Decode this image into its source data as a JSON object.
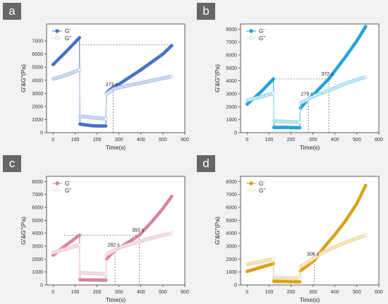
{
  "chart_data": [
    {
      "type": "scatter",
      "panel_label": "a",
      "color": "#4a72c4",
      "xlabel": "Time(s)",
      "ylabel": "G'&G''(Pa)",
      "xlim": [
        -30,
        600
      ],
      "ylim": [
        0,
        8300
      ],
      "xticks": [
        "0",
        "100",
        "200",
        "300",
        "400",
        "500",
        "600"
      ],
      "yticks": [
        "0",
        "1000",
        "2000",
        "3000",
        "4000",
        "5000",
        "6000",
        "7000"
      ],
      "legend_position": "top-left",
      "series": [
        {
          "name": "G'",
          "marker": "filled",
          "points": [
            [
              0,
              5200
            ],
            [
              60,
              6200
            ],
            [
              120,
              7250
            ],
            [
              122,
              650
            ],
            [
              180,
              520
            ],
            [
              240,
              500
            ],
            [
              243,
              3000
            ],
            [
              260,
              3300
            ],
            [
              273,
              3450
            ],
            [
              300,
              3700
            ],
            [
              400,
              4800
            ],
            [
              500,
              6000
            ],
            [
              540,
              6650
            ]
          ]
        },
        {
          "name": "G''",
          "marker": "open",
          "points": [
            [
              0,
              4100
            ],
            [
              60,
              4400
            ],
            [
              120,
              4800
            ],
            [
              122,
              1250
            ],
            [
              180,
              1150
            ],
            [
              240,
              1050
            ],
            [
              243,
              2950
            ],
            [
              260,
              3150
            ],
            [
              273,
              3300
            ],
            [
              300,
              3450
            ],
            [
              400,
              3800
            ],
            [
              500,
              4150
            ],
            [
              540,
              4300
            ]
          ]
        }
      ],
      "annotations": [
        {
          "text": "273 s",
          "x": 273,
          "y": 3300
        }
      ],
      "guides": [
        {
          "from": [
            120,
            6700
          ],
          "to": [
            540,
            6700
          ]
        },
        {
          "from": [
            273,
            0
          ],
          "to": [
            273,
            3300
          ]
        }
      ]
    },
    {
      "type": "scatter",
      "panel_label": "b",
      "color": "#21a4d8",
      "xlabel": "Time(s)",
      "ylabel": "G'&G''(Pa)",
      "xlim": [
        -30,
        600
      ],
      "ylim": [
        0,
        8400
      ],
      "xticks": [
        "0",
        "100",
        "200",
        "300",
        "400",
        "500",
        "600"
      ],
      "yticks": [
        "0",
        "1000",
        "2000",
        "3000",
        "4000",
        "5000",
        "6000",
        "7000",
        "8000"
      ],
      "legend_position": "top-left",
      "series": [
        {
          "name": "G'",
          "marker": "filled",
          "points": [
            [
              0,
              2200
            ],
            [
              60,
              3100
            ],
            [
              120,
              4150
            ],
            [
              122,
              400
            ],
            [
              180,
              400
            ],
            [
              240,
              380
            ],
            [
              243,
              1900
            ],
            [
              279,
              2600
            ],
            [
              300,
              2900
            ],
            [
              372,
              4150
            ],
            [
              450,
              5900
            ],
            [
              500,
              7100
            ],
            [
              540,
              8200
            ]
          ]
        },
        {
          "name": "G''",
          "marker": "open",
          "points": [
            [
              0,
              2500
            ],
            [
              60,
              2750
            ],
            [
              120,
              3050
            ],
            [
              122,
              900
            ],
            [
              180,
              850
            ],
            [
              240,
              800
            ],
            [
              243,
              2300
            ],
            [
              279,
              2600
            ],
            [
              300,
              2800
            ],
            [
              372,
              3250
            ],
            [
              450,
              3800
            ],
            [
              500,
              4100
            ],
            [
              540,
              4300
            ]
          ]
        }
      ],
      "annotations": [
        {
          "text": "279 s",
          "x": 279,
          "y": 2600
        },
        {
          "text": "372 s",
          "x": 372,
          "y": 4150
        }
      ],
      "guides": [
        {
          "from": [
            120,
            4150
          ],
          "to": [
            372,
            4150
          ]
        },
        {
          "from": [
            279,
            0
          ],
          "to": [
            279,
            2600
          ]
        },
        {
          "from": [
            372,
            0
          ],
          "to": [
            372,
            4150
          ]
        }
      ]
    },
    {
      "type": "scatter",
      "panel_label": "c",
      "color": "#d4879e",
      "xlabel": "Time(s)",
      "ylabel": "G'&G''(Pa)",
      "xlim": [
        -30,
        600
      ],
      "ylim": [
        0,
        8400
      ],
      "xticks": [
        "0",
        "100",
        "200",
        "300",
        "400",
        "500",
        "600"
      ],
      "yticks": [
        "0",
        "1000",
        "2000",
        "3000",
        "4000",
        "5000",
        "6000",
        "7000",
        "8000"
      ],
      "legend_position": "top-left",
      "series": [
        {
          "name": "G'",
          "marker": "filled",
          "points": [
            [
              0,
              2300
            ],
            [
              60,
              3100
            ],
            [
              120,
              3850
            ],
            [
              122,
              400
            ],
            [
              180,
              380
            ],
            [
              240,
              370
            ],
            [
              243,
              2000
            ],
            [
              282,
              2700
            ],
            [
              300,
              2850
            ],
            [
              393,
              3850
            ],
            [
              450,
              4900
            ],
            [
              500,
              5900
            ],
            [
              540,
              6850
            ]
          ]
        },
        {
          "name": "G''",
          "marker": "open",
          "points": [
            [
              0,
              2500
            ],
            [
              60,
              2800
            ],
            [
              120,
              3100
            ],
            [
              122,
              950
            ],
            [
              180,
              900
            ],
            [
              240,
              850
            ],
            [
              243,
              2350
            ],
            [
              282,
              2700
            ],
            [
              300,
              2900
            ],
            [
              393,
              3350
            ],
            [
              450,
              3650
            ],
            [
              500,
              3850
            ],
            [
              540,
              4000
            ]
          ]
        }
      ],
      "annotations": [
        {
          "text": "282 s",
          "x": 282,
          "y": 2700
        },
        {
          "text": "393 s",
          "x": 393,
          "y": 3850
        }
      ],
      "guides": [
        {
          "from": [
            50,
            3850
          ],
          "to": [
            393,
            3850
          ]
        },
        {
          "from": [
            282,
            0
          ],
          "to": [
            282,
            2700
          ]
        },
        {
          "from": [
            393,
            0
          ],
          "to": [
            393,
            3850
          ]
        }
      ]
    },
    {
      "type": "scatter",
      "panel_label": "d",
      "color": "#d9a21a",
      "xlabel": "Time(s)",
      "ylabel": "G'&G''(Pa)",
      "xlim": [
        -30,
        600
      ],
      "ylim": [
        0,
        8400
      ],
      "xticks": [
        "0",
        "100",
        "200",
        "300",
        "400",
        "500",
        "600"
      ],
      "yticks": [
        "0",
        "1000",
        "2000",
        "3000",
        "4000",
        "5000",
        "6000",
        "7000",
        "8000"
      ],
      "legend_position": "top-left",
      "series": [
        {
          "name": "G'",
          "marker": "filled",
          "points": [
            [
              0,
              1050
            ],
            [
              60,
              1350
            ],
            [
              120,
              1650
            ],
            [
              122,
              280
            ],
            [
              180,
              260
            ],
            [
              240,
              250
            ],
            [
              243,
              1100
            ],
            [
              306,
              1900
            ],
            [
              350,
              2900
            ],
            [
              400,
              3900
            ],
            [
              450,
              5000
            ],
            [
              500,
              6300
            ],
            [
              540,
              7700
            ]
          ]
        },
        {
          "name": "G''",
          "marker": "open",
          "points": [
            [
              0,
              1600
            ],
            [
              60,
              1800
            ],
            [
              120,
              2000
            ],
            [
              122,
              550
            ],
            [
              180,
              520
            ],
            [
              240,
              500
            ],
            [
              243,
              1400
            ],
            [
              306,
              2100
            ],
            [
              350,
              2550
            ],
            [
              400,
              2950
            ],
            [
              450,
              3300
            ],
            [
              500,
              3600
            ],
            [
              540,
              3850
            ]
          ]
        }
      ],
      "annotations": [
        {
          "text": "306 s",
          "x": 306,
          "y": 2000
        }
      ],
      "guides": [
        {
          "from": [
            306,
            0
          ],
          "to": [
            306,
            2000
          ]
        }
      ]
    }
  ]
}
